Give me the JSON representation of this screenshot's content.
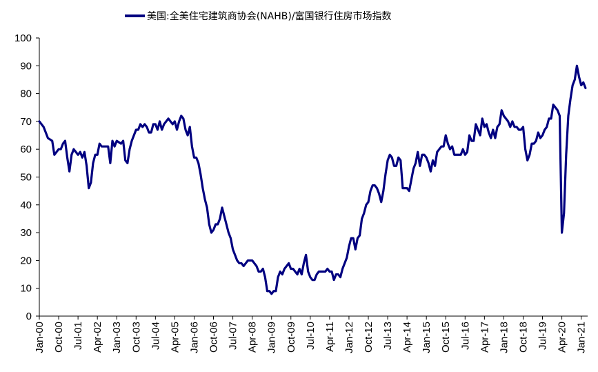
{
  "chart_data": {
    "type": "line",
    "title": "",
    "xlabel": "",
    "ylabel": "",
    "ylim": [
      0,
      100
    ],
    "yticks": [
      0,
      10,
      20,
      30,
      40,
      50,
      60,
      70,
      80,
      90,
      100
    ],
    "x_tick_labels": [
      "Jan-00",
      "Oct-00",
      "Jul-01",
      "Apr-02",
      "Jan-03",
      "Oct-03",
      "Jul-04",
      "Apr-05",
      "Jan-06",
      "Oct-06",
      "Jul-07",
      "Apr-08",
      "Jan-09",
      "Oct-09",
      "Jul-10",
      "Apr-11",
      "Jan-12",
      "Oct-12",
      "Jul-13",
      "Apr-14",
      "Jan-15",
      "Oct-15",
      "Jul-16",
      "Apr-17",
      "Jan-18",
      "Oct-18",
      "Jul-19",
      "Apr-20",
      "Jan-21"
    ],
    "x_range": [
      "2000-01",
      "2021-04"
    ],
    "grid": false,
    "legend_position": "top-center",
    "color": "#000080",
    "series": [
      {
        "name": "美国:全美住宅建筑商协会(NAHB)/富国银行住房市场指数",
        "points": [
          [
            "2000-01",
            70
          ],
          [
            "2000-03",
            68
          ],
          [
            "2000-05",
            64
          ],
          [
            "2000-07",
            63
          ],
          [
            "2000-08",
            58
          ],
          [
            "2000-10",
            60
          ],
          [
            "2000-11",
            60
          ],
          [
            "2000-12",
            62
          ],
          [
            "2001-01",
            63
          ],
          [
            "2001-02",
            57
          ],
          [
            "2001-03",
            52
          ],
          [
            "2001-04",
            58
          ],
          [
            "2001-05",
            60
          ],
          [
            "2001-06",
            59
          ],
          [
            "2001-07",
            58
          ],
          [
            "2001-08",
            59
          ],
          [
            "2001-09",
            57
          ],
          [
            "2001-10",
            59
          ],
          [
            "2001-11",
            54
          ],
          [
            "2001-12",
            46
          ],
          [
            "2002-01",
            48
          ],
          [
            "2002-02",
            55
          ],
          [
            "2002-03",
            58
          ],
          [
            "2002-04",
            58
          ],
          [
            "2002-05",
            62
          ],
          [
            "2002-06",
            61
          ],
          [
            "2002-07",
            61
          ],
          [
            "2002-09",
            61
          ],
          [
            "2002-10",
            55
          ],
          [
            "2002-11",
            63
          ],
          [
            "2002-12",
            61
          ],
          [
            "2003-01",
            63
          ],
          [
            "2003-03",
            62
          ],
          [
            "2003-04",
            63
          ],
          [
            "2003-05",
            56
          ],
          [
            "2003-06",
            55
          ],
          [
            "2003-07",
            60
          ],
          [
            "2003-08",
            63
          ],
          [
            "2003-10",
            67
          ],
          [
            "2003-11",
            67
          ],
          [
            "2003-12",
            69
          ],
          [
            "2004-01",
            68
          ],
          [
            "2004-02",
            69
          ],
          [
            "2004-03",
            68
          ],
          [
            "2004-04",
            66
          ],
          [
            "2004-05",
            66
          ],
          [
            "2004-06",
            69
          ],
          [
            "2004-07",
            69
          ],
          [
            "2004-08",
            67
          ],
          [
            "2004-09",
            70
          ],
          [
            "2004-10",
            67
          ],
          [
            "2004-11",
            69
          ],
          [
            "2004-12",
            70
          ],
          [
            "2005-01",
            71
          ],
          [
            "2005-02",
            70
          ],
          [
            "2005-03",
            69
          ],
          [
            "2005-04",
            70
          ],
          [
            "2005-05",
            67
          ],
          [
            "2005-06",
            70
          ],
          [
            "2005-07",
            72
          ],
          [
            "2005-08",
            71
          ],
          [
            "2005-09",
            67
          ],
          [
            "2005-10",
            65
          ],
          [
            "2005-11",
            68
          ],
          [
            "2005-12",
            61
          ],
          [
            "2006-01",
            57
          ],
          [
            "2006-02",
            57
          ],
          [
            "2006-03",
            55
          ],
          [
            "2006-04",
            51
          ],
          [
            "2006-05",
            46
          ],
          [
            "2006-06",
            42
          ],
          [
            "2006-07",
            39
          ],
          [
            "2006-08",
            33
          ],
          [
            "2006-09",
            30
          ],
          [
            "2006-10",
            31
          ],
          [
            "2006-11",
            33
          ],
          [
            "2006-12",
            33
          ],
          [
            "2007-01",
            35
          ],
          [
            "2007-02",
            39
          ],
          [
            "2007-03",
            36
          ],
          [
            "2007-04",
            33
          ],
          [
            "2007-05",
            30
          ],
          [
            "2007-06",
            28
          ],
          [
            "2007-07",
            24
          ],
          [
            "2007-08",
            22
          ],
          [
            "2007-09",
            20
          ],
          [
            "2007-10",
            19
          ],
          [
            "2007-11",
            19
          ],
          [
            "2007-12",
            18
          ],
          [
            "2008-01",
            19
          ],
          [
            "2008-02",
            20
          ],
          [
            "2008-03",
            20
          ],
          [
            "2008-04",
            20
          ],
          [
            "2008-05",
            19
          ],
          [
            "2008-06",
            18
          ],
          [
            "2008-07",
            16
          ],
          [
            "2008-08",
            16
          ],
          [
            "2008-09",
            17
          ],
          [
            "2008-10",
            14
          ],
          [
            "2008-11",
            9
          ],
          [
            "2008-12",
            9
          ],
          [
            "2009-01",
            8
          ],
          [
            "2009-02",
            9
          ],
          [
            "2009-03",
            9
          ],
          [
            "2009-04",
            14
          ],
          [
            "2009-05",
            16
          ],
          [
            "2009-06",
            15
          ],
          [
            "2009-07",
            17
          ],
          [
            "2009-08",
            18
          ],
          [
            "2009-09",
            19
          ],
          [
            "2009-10",
            17
          ],
          [
            "2009-11",
            17
          ],
          [
            "2009-12",
            16
          ],
          [
            "2010-01",
            15
          ],
          [
            "2010-02",
            17
          ],
          [
            "2010-03",
            15
          ],
          [
            "2010-04",
            19
          ],
          [
            "2010-05",
            22
          ],
          [
            "2010-06",
            16
          ],
          [
            "2010-07",
            14
          ],
          [
            "2010-08",
            13
          ],
          [
            "2010-09",
            13
          ],
          [
            "2010-10",
            15
          ],
          [
            "2010-11",
            16
          ],
          [
            "2010-12",
            16
          ],
          [
            "2011-01",
            16
          ],
          [
            "2011-02",
            16
          ],
          [
            "2011-03",
            17
          ],
          [
            "2011-04",
            16
          ],
          [
            "2011-05",
            16
          ],
          [
            "2011-06",
            13
          ],
          [
            "2011-07",
            15
          ],
          [
            "2011-08",
            15
          ],
          [
            "2011-09",
            14
          ],
          [
            "2011-10",
            17
          ],
          [
            "2011-11",
            19
          ],
          [
            "2011-12",
            21
          ],
          [
            "2012-01",
            25
          ],
          [
            "2012-02",
            28
          ],
          [
            "2012-03",
            28
          ],
          [
            "2012-04",
            24
          ],
          [
            "2012-05",
            28
          ],
          [
            "2012-06",
            29
          ],
          [
            "2012-07",
            35
          ],
          [
            "2012-08",
            37
          ],
          [
            "2012-09",
            40
          ],
          [
            "2012-10",
            41
          ],
          [
            "2012-11",
            45
          ],
          [
            "2012-12",
            47
          ],
          [
            "2013-01",
            47
          ],
          [
            "2013-02",
            46
          ],
          [
            "2013-03",
            44
          ],
          [
            "2013-04",
            41
          ],
          [
            "2013-05",
            45
          ],
          [
            "2013-06",
            51
          ],
          [
            "2013-07",
            56
          ],
          [
            "2013-08",
            58
          ],
          [
            "2013-09",
            57
          ],
          [
            "2013-10",
            54
          ],
          [
            "2013-11",
            54
          ],
          [
            "2013-12",
            57
          ],
          [
            "2014-01",
            56
          ],
          [
            "2014-02",
            46
          ],
          [
            "2014-03",
            46
          ],
          [
            "2014-04",
            46
          ],
          [
            "2014-05",
            45
          ],
          [
            "2014-06",
            49
          ],
          [
            "2014-07",
            53
          ],
          [
            "2014-08",
            55
          ],
          [
            "2014-09",
            59
          ],
          [
            "2014-10",
            54
          ],
          [
            "2014-11",
            58
          ],
          [
            "2014-12",
            58
          ],
          [
            "2015-01",
            57
          ],
          [
            "2015-02",
            55
          ],
          [
            "2015-03",
            52
          ],
          [
            "2015-04",
            56
          ],
          [
            "2015-05",
            54
          ],
          [
            "2015-06",
            59
          ],
          [
            "2015-07",
            60
          ],
          [
            "2015-08",
            61
          ],
          [
            "2015-09",
            61
          ],
          [
            "2015-10",
            65
          ],
          [
            "2015-11",
            62
          ],
          [
            "2015-12",
            60
          ],
          [
            "2016-01",
            61
          ],
          [
            "2016-02",
            58
          ],
          [
            "2016-03",
            58
          ],
          [
            "2016-04",
            58
          ],
          [
            "2016-05",
            58
          ],
          [
            "2016-06",
            60
          ],
          [
            "2016-07",
            58
          ],
          [
            "2016-08",
            59
          ],
          [
            "2016-09",
            65
          ],
          [
            "2016-10",
            63
          ],
          [
            "2016-11",
            63
          ],
          [
            "2016-12",
            69
          ],
          [
            "2017-01",
            67
          ],
          [
            "2017-02",
            65
          ],
          [
            "2017-03",
            71
          ],
          [
            "2017-04",
            68
          ],
          [
            "2017-05",
            69
          ],
          [
            "2017-06",
            66
          ],
          [
            "2017-07",
            64
          ],
          [
            "2017-08",
            67
          ],
          [
            "2017-09",
            64
          ],
          [
            "2017-10",
            68
          ],
          [
            "2017-11",
            69
          ],
          [
            "2017-12",
            74
          ],
          [
            "2018-01",
            72
          ],
          [
            "2018-02",
            71
          ],
          [
            "2018-03",
            70
          ],
          [
            "2018-04",
            68
          ],
          [
            "2018-05",
            70
          ],
          [
            "2018-06",
            68
          ],
          [
            "2018-07",
            68
          ],
          [
            "2018-08",
            67
          ],
          [
            "2018-09",
            67
          ],
          [
            "2018-10",
            68
          ],
          [
            "2018-11",
            60
          ],
          [
            "2018-12",
            56
          ],
          [
            "2019-01",
            58
          ],
          [
            "2019-02",
            62
          ],
          [
            "2019-03",
            62
          ],
          [
            "2019-04",
            63
          ],
          [
            "2019-05",
            66
          ],
          [
            "2019-06",
            64
          ],
          [
            "2019-07",
            65
          ],
          [
            "2019-08",
            67
          ],
          [
            "2019-09",
            68
          ],
          [
            "2019-10",
            71
          ],
          [
            "2019-11",
            71
          ],
          [
            "2019-12",
            76
          ],
          [
            "2020-01",
            75
          ],
          [
            "2020-02",
            74
          ],
          [
            "2020-03",
            72
          ],
          [
            "2020-04",
            30
          ],
          [
            "2020-05",
            37
          ],
          [
            "2020-06",
            58
          ],
          [
            "2020-07",
            72
          ],
          [
            "2020-08",
            78
          ],
          [
            "2020-09",
            83
          ],
          [
            "2020-10",
            85
          ],
          [
            "2020-11",
            90
          ],
          [
            "2020-12",
            86
          ],
          [
            "2021-01",
            83
          ],
          [
            "2021-02",
            84
          ],
          [
            "2021-03",
            82
          ]
        ]
      }
    ]
  }
}
